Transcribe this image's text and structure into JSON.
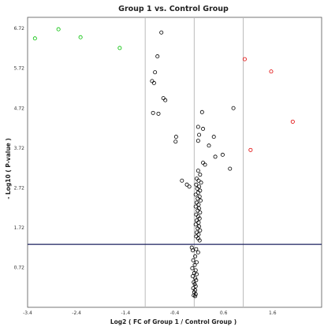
{
  "chart_data": {
    "type": "scatter",
    "title": "Group 1 vs. Control Group",
    "xlabel": "Log2 ( FC of Group 1 / Control Group )",
    "ylabel": "- Log10 ( P-value )",
    "xlim": [
      -3.4,
      2.6
    ],
    "ylim": [
      -0.28,
      7.0
    ],
    "x_ticks": [
      "-3.4",
      "-2.4",
      "-1.4",
      "-0.4",
      "0.6",
      "1.6"
    ],
    "x_tick_values": [
      -3.4,
      -2.4,
      -1.4,
      -0.4,
      0.6,
      1.6
    ],
    "y_ticks": [
      "0.72",
      "1.72",
      "2.72",
      "3.72",
      "4.72",
      "5.72",
      "6.72"
    ],
    "y_tick_values": [
      0.72,
      1.72,
      2.72,
      3.72,
      4.72,
      5.72,
      6.72
    ],
    "vertical_lines": [
      -1,
      0,
      1
    ],
    "threshold_line_y": 1.3,
    "grid": false,
    "colors": {
      "up": "#e00000",
      "down": "#00c000",
      "neutral": "#000000",
      "reference_line": "#bbbbbb",
      "threshold_line": "#1a1f5e"
    },
    "series": [
      {
        "category": "down",
        "points": [
          [
            -3.25,
            6.47
          ],
          [
            -2.77,
            6.7
          ],
          [
            -2.32,
            6.5
          ],
          [
            -1.52,
            6.23
          ]
        ]
      },
      {
        "category": "up",
        "points": [
          [
            1.03,
            5.95
          ],
          [
            1.57,
            5.64
          ],
          [
            2.01,
            4.38
          ],
          [
            1.15,
            3.67
          ]
        ]
      },
      {
        "category": "neutral",
        "points": [
          [
            -0.67,
            6.62
          ],
          [
            -0.75,
            6.02
          ],
          [
            -0.8,
            5.62
          ],
          [
            -0.86,
            5.4
          ],
          [
            -0.82,
            5.35
          ],
          [
            -0.63,
            4.97
          ],
          [
            -0.59,
            4.92
          ],
          [
            -0.84,
            4.6
          ],
          [
            -0.73,
            4.58
          ],
          [
            -0.37,
            4.0
          ],
          [
            -0.38,
            3.88
          ],
          [
            0.16,
            4.62
          ],
          [
            0.8,
            4.72
          ],
          [
            0.08,
            4.25
          ],
          [
            0.18,
            4.2
          ],
          [
            0.1,
            4.05
          ],
          [
            0.4,
            4.0
          ],
          [
            0.08,
            3.9
          ],
          [
            0.3,
            3.78
          ],
          [
            0.58,
            3.55
          ],
          [
            0.43,
            3.5
          ],
          [
            0.18,
            3.35
          ],
          [
            0.22,
            3.3
          ],
          [
            0.73,
            3.2
          ],
          [
            0.08,
            3.15
          ],
          [
            -0.25,
            2.9
          ],
          [
            -0.15,
            2.8
          ],
          [
            -0.1,
            2.75
          ],
          [
            0.12,
            3.05
          ],
          [
            0.05,
            2.95
          ],
          [
            0.09,
            2.9
          ],
          [
            0.14,
            2.85
          ],
          [
            0.04,
            2.8
          ],
          [
            0.1,
            2.75
          ],
          [
            0.06,
            2.7
          ],
          [
            0.12,
            2.65
          ],
          [
            0.08,
            2.6
          ],
          [
            0.03,
            2.55
          ],
          [
            0.11,
            2.5
          ],
          [
            0.07,
            2.45
          ],
          [
            0.13,
            2.4
          ],
          [
            0.05,
            2.35
          ],
          [
            0.09,
            2.3
          ],
          [
            0.03,
            2.25
          ],
          [
            0.1,
            2.2
          ],
          [
            0.07,
            2.15
          ],
          [
            0.12,
            2.1
          ],
          [
            0.04,
            2.05
          ],
          [
            0.08,
            2.0
          ],
          [
            0.11,
            1.95
          ],
          [
            0.05,
            1.9
          ],
          [
            0.09,
            1.85
          ],
          [
            0.03,
            1.8
          ],
          [
            0.1,
            1.75
          ],
          [
            0.07,
            1.7
          ],
          [
            0.12,
            1.65
          ],
          [
            0.05,
            1.6
          ],
          [
            0.09,
            1.55
          ],
          [
            0.04,
            1.5
          ],
          [
            0.08,
            1.45
          ],
          [
            0.11,
            1.4
          ],
          [
            -0.05,
            1.22
          ],
          [
            -0.03,
            1.15
          ],
          [
            0.04,
            1.18
          ],
          [
            0.08,
            1.1
          ],
          [
            0.02,
            1.0
          ],
          [
            -0.02,
            0.9
          ],
          [
            0.05,
            0.85
          ],
          [
            0.01,
            0.78
          ],
          [
            -0.04,
            0.7
          ],
          [
            0.03,
            0.65
          ],
          [
            0.0,
            0.58
          ],
          [
            0.05,
            0.55
          ],
          [
            -0.03,
            0.5
          ],
          [
            0.02,
            0.45
          ],
          [
            0.04,
            0.4
          ],
          [
            -0.01,
            0.35
          ],
          [
            0.01,
            0.3
          ],
          [
            0.03,
            0.25
          ],
          [
            -0.02,
            0.2
          ],
          [
            0.02,
            0.15
          ],
          [
            0.0,
            0.1
          ],
          [
            0.03,
            0.05
          ],
          [
            -0.01,
            0.02
          ],
          [
            0.02,
            0.0
          ]
        ]
      }
    ]
  }
}
